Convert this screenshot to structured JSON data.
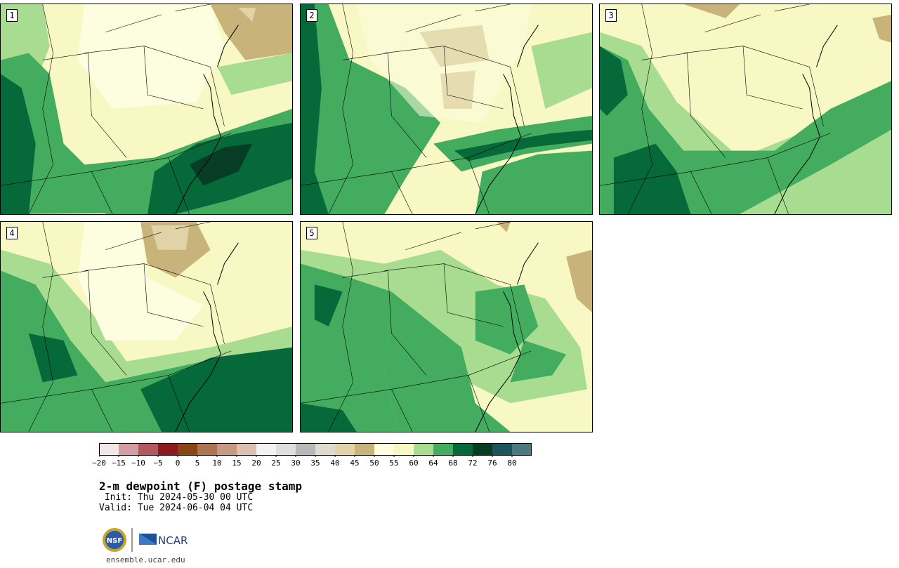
{
  "figure": {
    "title": "2-m dewpoint (F) postage stamp",
    "init_line": " Init: Thu 2024-05-30 00 UTC",
    "valid_line": "Valid: Tue 2024-06-04 04 UTC",
    "url": "ensemble.ucar.edu",
    "logos": {
      "nsf": "NSF",
      "ncar": "NCAR"
    }
  },
  "members": [
    {
      "label": "1"
    },
    {
      "label": "2"
    },
    {
      "label": "3"
    },
    {
      "label": "4"
    },
    {
      "label": "5"
    }
  ],
  "colorbar": {
    "ticks": [
      "-20",
      "-15",
      "-10",
      "-5",
      "0",
      "5",
      "10",
      "15",
      "20",
      "25",
      "30",
      "35",
      "40",
      "45",
      "50",
      "55",
      "60",
      "64",
      "68",
      "72",
      "76",
      "80"
    ],
    "colors": [
      "#f3e6e6",
      "#d29ea2",
      "#b05a5e",
      "#8c1a1e",
      "#8a4512",
      "#ac7450",
      "#c69a82",
      "#dcc0b0",
      "#f2f2f2",
      "#dedede",
      "#b8b8b8",
      "#dcdccc",
      "#e2d2a8",
      "#c8b47a",
      "#fdfde0",
      "#f7f8c4",
      "#a8dc90",
      "#44ac5e",
      "#05693a",
      "#073d24",
      "#1b545c",
      "#4c7880"
    ]
  },
  "palette": {
    "tan": "#c8b47a",
    "pale_tan": "#e2d2a8",
    "cream": "#fdfde0",
    "pale_yellow": "#f7f8c4",
    "light_green": "#a8dc90",
    "green": "#44ac5e",
    "dark_green": "#05693a",
    "darkest_green": "#073d24"
  }
}
